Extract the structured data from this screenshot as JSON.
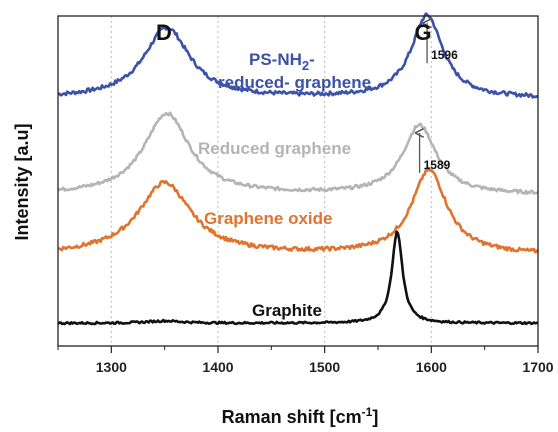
{
  "chart_data": {
    "type": "line",
    "xlabel": "Raman shift [cm",
    "xlabel_sup": "-1",
    "xlabel_end": "]",
    "ylabel": "Intensity [a.u]",
    "xlim": [
      1250,
      1700
    ],
    "ylim": [
      0,
      1
    ],
    "x_ticks": [
      1300,
      1400,
      1500,
      1600,
      1700
    ],
    "grid": "vertical dotted at major x ticks",
    "peak_labels": [
      {
        "text": "D",
        "x": 1350
      },
      {
        "text": "G",
        "x": 1590
      }
    ],
    "annotations": [
      {
        "text": "1596",
        "x": 1596
      },
      {
        "text": "1589",
        "x": 1589
      }
    ],
    "series": [
      {
        "name_line1": "PS-NH",
        "name_sub": "2",
        "name_line2_prefix": "-",
        "name_line2": "reduced- graphene",
        "color": "#3c52a8",
        "baseline": 0.75,
        "d_peak": {
          "center": 1352,
          "width": 52,
          "height": 0.214
        },
        "g_peak": {
          "center": 1596,
          "width": 36,
          "height": 0.25
        },
        "noise": 0.006
      },
      {
        "name": "Reduced graphene",
        "color": "#b4b4b4",
        "baseline": 0.458,
        "d_peak": {
          "center": 1352,
          "width": 52,
          "height": 0.246
        },
        "g_peak": {
          "center": 1589,
          "width": 38,
          "height": 0.209
        },
        "noise": 0.005
      },
      {
        "name": "Graphene oxide",
        "color": "#e0732e",
        "baseline": 0.276,
        "d_peak": {
          "center": 1350,
          "width": 60,
          "height": 0.218
        },
        "g_peak": {
          "center": 1598,
          "width": 40,
          "height": 0.255
        },
        "noise": 0.006
      },
      {
        "name": "Graphite",
        "color": "#111111",
        "baseline": 0.069,
        "d_peak": {
          "center": 1350,
          "width": 40,
          "height": 0.007
        },
        "g_peak": {
          "center": 1568,
          "width": 12,
          "height": 0.278
        },
        "noise": 0.003
      }
    ]
  }
}
